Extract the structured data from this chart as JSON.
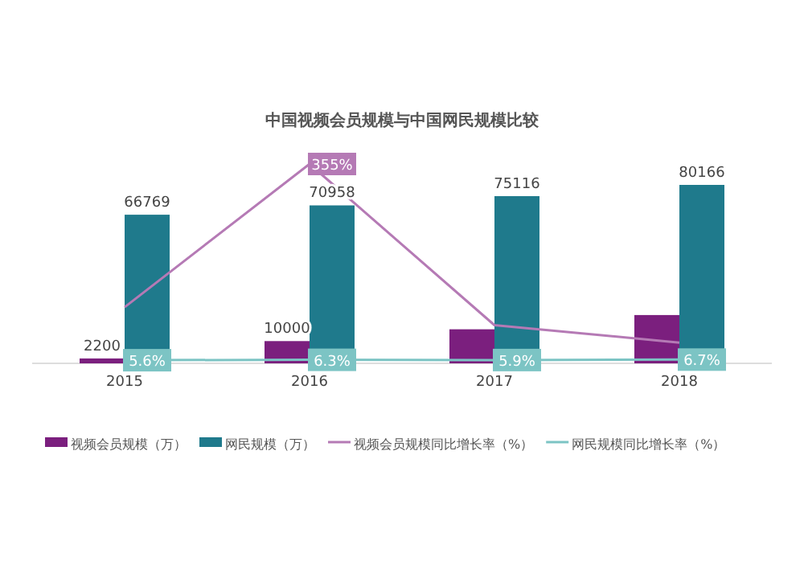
{
  "chart_data": {
    "type": "bar",
    "title": "中国视频会员规模与中国网民规模比较",
    "categories": [
      "2015",
      "2016",
      "2017",
      "2018"
    ],
    "tick_labels": "x",
    "grid": false,
    "legend": "bottom",
    "series": [
      {
        "name": "视频会员规模（万）",
        "color": "#7b1f7e",
        "values": [
          2200,
          10000,
          15300,
          21700
        ],
        "value_labels": [
          "2200",
          "10000",
          null,
          null
        ]
      },
      {
        "name": "网民规模（万）",
        "color": "#1f7a8c",
        "values": [
          66769,
          70958,
          75116,
          80166
        ],
        "value_labels": [
          "66769",
          "70958",
          "75116",
          "80166"
        ]
      },
      {
        "name": "视频会员规模同比增长率（%）",
        "type": "line",
        "axis": "y2",
        "color": "#b57ab5",
        "values": [
          100,
          355,
          68,
          37
        ],
        "value_labels": [
          null,
          "355%",
          null,
          null
        ]
      },
      {
        "name": "网民规模同比增长率（%）",
        "type": "line",
        "axis": "y2",
        "color": "#7cc4c4",
        "values": [
          5.6,
          6.3,
          5.9,
          6.7
        ],
        "value_labels": [
          "5.6%",
          "6.3%",
          "5.9%",
          "6.7%"
        ]
      }
    ]
  }
}
